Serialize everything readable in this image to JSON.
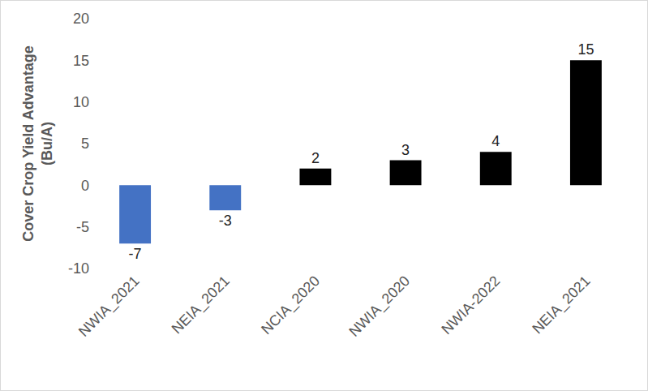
{
  "chart_data": {
    "type": "bar",
    "categories": [
      "NWIA_2021",
      "NEIA_2021",
      "NCIA_2020",
      "NWIA_2020",
      "NWIA-2022",
      "NEIA_2021"
    ],
    "values": [
      -7,
      -3,
      2,
      3,
      4,
      15
    ],
    "colors": [
      "#4472c4",
      "#4472c4",
      "#000000",
      "#000000",
      "#000000",
      "#000000"
    ],
    "y_label": "Cover Crop Yield Advantage (Bu/A)",
    "ylim": [
      -10,
      20
    ],
    "yticks": [
      -10,
      -5,
      0,
      5,
      10,
      15,
      20
    ],
    "grid": false,
    "data_labels": true
  }
}
